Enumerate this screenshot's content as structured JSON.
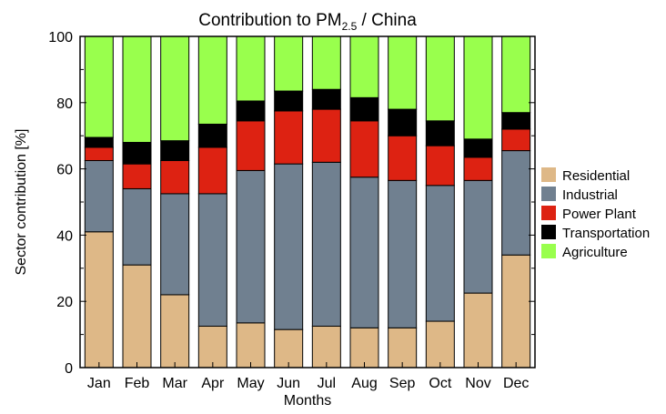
{
  "chart_data": {
    "type": "bar",
    "stacked": true,
    "title": {
      "prefix": "Contribution to PM",
      "subscript": "2.5",
      "suffix": " / China"
    },
    "xlabel": "Months",
    "ylabel": "Sector contribution [%]",
    "ylim": [
      0,
      100
    ],
    "yticks": [
      0,
      20,
      40,
      60,
      80,
      100
    ],
    "grid": false,
    "legend_position": "right",
    "categories": [
      "Jan",
      "Feb",
      "Mar",
      "Apr",
      "May",
      "Jun",
      "Jul",
      "Aug",
      "Sep",
      "Oct",
      "Nov",
      "Dec"
    ],
    "series": [
      {
        "name": "Residential",
        "color": "#deb887",
        "values": [
          41,
          31,
          22,
          12.5,
          13.5,
          11.5,
          12.5,
          12,
          12,
          14,
          22.5,
          34
        ]
      },
      {
        "name": "Industrial",
        "color": "#708090",
        "values": [
          21.5,
          23,
          30.5,
          40,
          46,
          50,
          49.5,
          45.5,
          44.5,
          41,
          34,
          31.5
        ]
      },
      {
        "name": "Power Plant",
        "color": "#dd2212",
        "values": [
          4,
          7.5,
          10,
          14,
          15,
          16,
          16,
          17,
          13.5,
          12,
          7,
          6.5
        ]
      },
      {
        "name": "Transportation",
        "color": "#000000",
        "values": [
          3,
          6.5,
          6,
          7,
          6,
          6,
          6,
          7,
          8,
          7.5,
          5.5,
          5
        ]
      },
      {
        "name": "Agriculture",
        "color": "#99ff4d",
        "values": [
          30.5,
          32,
          31.5,
          26.5,
          19.5,
          16.5,
          16,
          18.5,
          22,
          25.5,
          31,
          23
        ]
      }
    ]
  }
}
